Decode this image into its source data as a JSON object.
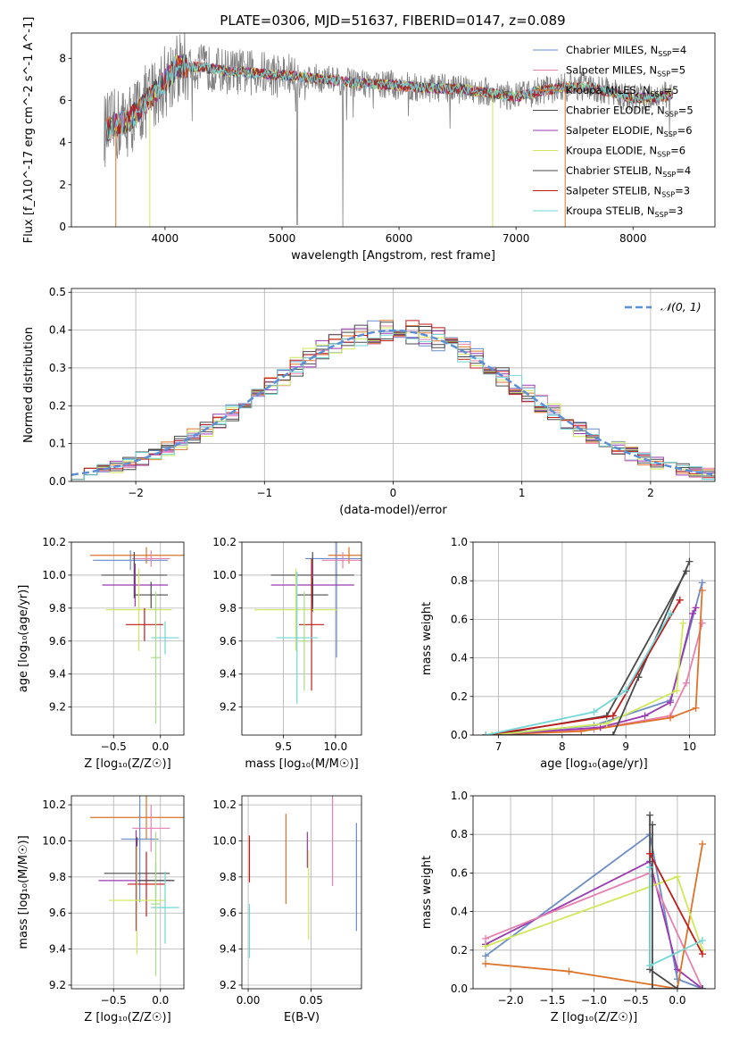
{
  "chart_data": [
    {
      "type": "line",
      "title": "PLATE=0306, MJD=51637, FIBERID=0147, z=0.089",
      "xlabel": "wavelength [Angstrom, rest frame]",
      "ylabel": "Flux [f_λ10^-17 erg cm^-2 s^-1 A^-1]",
      "xlim": [
        3200,
        8700
      ],
      "ylim": [
        0,
        9.2
      ],
      "xticks": [
        "4000",
        "5000",
        "6000",
        "7000",
        "8000"
      ],
      "yticks": [
        "0",
        "2",
        "4",
        "6",
        "8"
      ],
      "legend_position": "upper right",
      "legend": [
        {
          "label": "Chabrier MILES",
          "n": "4",
          "color": "#6a8cc7"
        },
        {
          "label": "Salpeter MILES",
          "n": "5",
          "color": "#e77fb0"
        },
        {
          "label": "Kroupa MILES",
          "n": "5",
          "color": "#dd7228"
        },
        {
          "label": "Chabrier ELODIE",
          "n": "5",
          "color": "#4a4a4a"
        },
        {
          "label": "Salpeter ELODIE",
          "n": "6",
          "color": "#9a39b0"
        },
        {
          "label": "Kroupa ELODIE",
          "n": "6",
          "color": "#cfe85a"
        },
        {
          "label": "Chabrier STELIB",
          "n": "4",
          "color": "#4a4a4a"
        },
        {
          "label": "Salpeter STELIB",
          "n": "3",
          "color": "#c11a1a"
        },
        {
          "label": "Kroupa STELIB",
          "n": "3",
          "color": "#72d6d6"
        }
      ],
      "continuum": {
        "wavelength": [
          3500,
          3700,
          3900,
          4100,
          4300,
          4500,
          4800,
          5000,
          5300,
          5600,
          5900,
          6200,
          6500,
          6800,
          7000,
          7200,
          7400,
          7600,
          7800,
          8000,
          8200,
          8350
        ],
        "flux": [
          4.6,
          5.1,
          6.3,
          7.6,
          7.6,
          7.4,
          7.3,
          7.2,
          7.05,
          6.85,
          6.75,
          6.6,
          6.55,
          6.35,
          6.15,
          6.45,
          6.6,
          6.65,
          6.4,
          6.1,
          6.15,
          6.3
        ]
      }
    },
    {
      "type": "histogram",
      "xlabel": "(data-model)/error",
      "ylabel": "Normed distribution",
      "xlim": [
        -2.5,
        2.5
      ],
      "ylim": [
        0,
        0.51
      ],
      "xticks": [
        "−2",
        "−1",
        "0",
        "1",
        "2"
      ],
      "yticks": [
        "0.0",
        "0.1",
        "0.2",
        "0.3",
        "0.4",
        "0.5"
      ],
      "legend_label": "𝒩(0, 1)",
      "reference": {
        "name": "𝒩(0, 1)",
        "mean": 0,
        "sigma": 1,
        "color": "#5b8fd6"
      },
      "bin_width": 0.1
    },
    {
      "type": "scatter",
      "xlabel": "Z [log₁₀(Z/Z☉)]",
      "ylabel": "age  [log₁₀(age/yr)]",
      "xlim": [
        -0.95,
        0.25
      ],
      "ylim": [
        9.03,
        10.2
      ],
      "xticks": [
        "−0.5",
        "0.0"
      ],
      "yticks": [
        "9.2",
        "9.4",
        "9.6",
        "9.8",
        "10.0",
        "10.2"
      ],
      "points": [
        {
          "x": -0.32,
          "y": 10.09,
          "xerr": 0.4,
          "yerr": 0.06,
          "color": "#6a8cc7"
        },
        {
          "x": -0.15,
          "y": 10.12,
          "xerr": 0.6,
          "yerr": 0.05,
          "color": "#dd7228"
        },
        {
          "x": -0.1,
          "y": 10.1,
          "xerr": 0.2,
          "yerr": 0.05,
          "color": "#e77fb0"
        },
        {
          "x": -0.28,
          "y": 10.0,
          "xerr": 0.35,
          "yerr": 0.14,
          "color": "#4a4a4a"
        },
        {
          "x": -0.27,
          "y": 9.94,
          "xerr": 0.35,
          "yerr": 0.13,
          "color": "#9a39b0"
        },
        {
          "x": -0.1,
          "y": 9.88,
          "xerr": 0.18,
          "yerr": 0.08,
          "color": "#4a4a4a"
        },
        {
          "x": -0.23,
          "y": 9.79,
          "xerr": 0.35,
          "yerr": 0.25,
          "color": "#cfe85a"
        },
        {
          "x": -0.17,
          "y": 9.7,
          "xerr": 0.2,
          "yerr": 0.1,
          "color": "#c11a1a"
        },
        {
          "x": 0.05,
          "y": 9.62,
          "xerr": 0.15,
          "yerr": 0.1,
          "color": "#72d6d6"
        },
        {
          "x": -0.05,
          "y": 9.5,
          "xerr": 0.05,
          "yerr": 0.4,
          "color": "#a8de86"
        }
      ]
    },
    {
      "type": "scatter",
      "xlabel": "mass [log₁₀(M/M☉)]",
      "xlim": [
        9.1,
        10.25
      ],
      "ylim": [
        9.03,
        10.2
      ],
      "xticks": [
        "9.5",
        "10.0"
      ],
      "yticks": [
        "9.2",
        "9.4",
        "9.6",
        "9.8",
        "10.0",
        "10.2"
      ],
      "points": [
        {
          "x": 10.01,
          "y": 10.1,
          "xerr": 0.3,
          "yerr": 0.6,
          "color": "#6a8cc7"
        },
        {
          "x": 10.13,
          "y": 10.12,
          "xerr": 0.2,
          "yerr": 0.05,
          "color": "#dd7228"
        },
        {
          "x": 10.07,
          "y": 10.09,
          "xerr": 0.2,
          "yerr": 0.05,
          "color": "#e77fb0"
        },
        {
          "x": 9.78,
          "y": 10.0,
          "xerr": 0.4,
          "yerr": 0.14,
          "color": "#4a4a4a"
        },
        {
          "x": 9.78,
          "y": 9.94,
          "xerr": 0.4,
          "yerr": 0.13,
          "color": "#9a39b0"
        },
        {
          "x": 9.78,
          "y": 9.88,
          "xerr": 0.15,
          "yerr": 0.1,
          "color": "#4a4a4a"
        },
        {
          "x": 9.62,
          "y": 9.79,
          "xerr": 0.4,
          "yerr": 0.25,
          "color": "#cfe85a"
        },
        {
          "x": 9.77,
          "y": 9.7,
          "xerr": 0.12,
          "yerr": 0.4,
          "color": "#c11a1a"
        },
        {
          "x": 9.63,
          "y": 9.62,
          "xerr": 0.2,
          "yerr": 0.4,
          "color": "#72d6d6"
        },
        {
          "x": 9.7,
          "y": 9.6,
          "xerr": 0.05,
          "yerr": 0.3,
          "color": "#a8de86"
        }
      ]
    },
    {
      "type": "line",
      "xlabel": "age  [log₁₀(age/yr)]",
      "ylabel": "mass weight",
      "xlim": [
        6.6,
        10.4
      ],
      "ylim": [
        0,
        1.0
      ],
      "xticks": [
        "7",
        "8",
        "9",
        "10"
      ],
      "yticks": [
        "0.0",
        "0.2",
        "0.4",
        "0.6",
        "0.8",
        "1.0"
      ],
      "series": [
        {
          "color": "#6a8cc7",
          "x": [
            6.8,
            8.5,
            9.7,
            10.2
          ],
          "y": [
            0.0,
            0.05,
            0.18,
            0.79
          ]
        },
        {
          "color": "#e77fb0",
          "x": [
            6.8,
            8.5,
            9.7,
            9.95,
            10.2
          ],
          "y": [
            0.0,
            0.03,
            0.1,
            0.27,
            0.58
          ]
        },
        {
          "color": "#dd7228",
          "x": [
            6.8,
            8.3,
            9.7,
            10.1,
            10.2
          ],
          "y": [
            0.0,
            0.02,
            0.09,
            0.14,
            0.75
          ]
        },
        {
          "color": "#4a4a4a",
          "x": [
            6.9,
            8.7,
            9.95
          ],
          "y": [
            0.0,
            0.1,
            0.85
          ]
        },
        {
          "color": "#9a39b0",
          "x": [
            6.8,
            8.6,
            9.3,
            9.7,
            10.05,
            10.1
          ],
          "y": [
            0.0,
            0.04,
            0.1,
            0.17,
            0.63,
            0.66
          ]
        },
        {
          "color": "#cfe85a",
          "x": [
            6.9,
            8.7,
            9.8,
            9.9
          ],
          "y": [
            0.0,
            0.06,
            0.23,
            0.58
          ]
        },
        {
          "color": "#4a4a4a",
          "x": [
            6.8,
            8.8,
            9.2,
            10.0
          ],
          "y": [
            0.0,
            0.0,
            0.3,
            0.9
          ]
        },
        {
          "color": "#c11a1a",
          "x": [
            6.8,
            8.8,
            9.85
          ],
          "y": [
            0.0,
            0.1,
            0.7
          ]
        },
        {
          "color": "#72d6d6",
          "x": [
            6.8,
            8.5,
            9.0,
            9.7
          ],
          "y": [
            0.0,
            0.12,
            0.23,
            0.63
          ]
        }
      ]
    },
    {
      "type": "scatter",
      "xlabel": "Z [log₁₀(Z/Z☉)]",
      "ylabel": "mass [log₁₀(M/M☉)]",
      "xlim": [
        -0.95,
        0.25
      ],
      "ylim": [
        9.18,
        10.25
      ],
      "xticks": [
        "−0.5",
        "0.0"
      ],
      "yticks": [
        "9.2",
        "9.4",
        "9.6",
        "9.8",
        "10.0",
        "10.2"
      ],
      "points": [
        {
          "x": -0.15,
          "y": 10.13,
          "xerr": 0.6,
          "yerr": 0.12,
          "color": "#dd7228"
        },
        {
          "x": -0.1,
          "y": 10.07,
          "xerr": 0.2,
          "yerr": 0.13,
          "color": "#e77fb0"
        },
        {
          "x": -0.22,
          "y": 10.01,
          "xerr": 0.2,
          "yerr": 0.35,
          "color": "#6a8cc7"
        },
        {
          "x": -0.25,
          "y": 9.82,
          "xerr": 0.35,
          "yerr": 0.2,
          "color": "#4a4a4a"
        },
        {
          "x": -0.26,
          "y": 9.78,
          "xerr": 0.4,
          "yerr": 0.28,
          "color": "#9a39b0"
        },
        {
          "x": -0.05,
          "y": 9.78,
          "xerr": 0.2,
          "yerr": 0.1,
          "color": "#4a4a4a"
        },
        {
          "x": -0.15,
          "y": 9.76,
          "xerr": 0.2,
          "yerr": 0.18,
          "color": "#c11a1a"
        },
        {
          "x": -0.25,
          "y": 9.67,
          "xerr": 0.3,
          "yerr": 0.3,
          "color": "#cfe85a"
        },
        {
          "x": 0.05,
          "y": 9.63,
          "xerr": 0.15,
          "yerr": 0.2,
          "color": "#72d6d6"
        },
        {
          "x": -0.05,
          "y": 9.65,
          "xerr": 0.05,
          "yerr": 0.4,
          "color": "#a8de86"
        }
      ]
    },
    {
      "type": "scatter",
      "xlabel": "E(B-V)",
      "xlim": [
        -0.005,
        0.09
      ],
      "ylim": [
        9.18,
        10.25
      ],
      "xticks": [
        "0.00",
        "0.05"
      ],
      "yticks": [
        "9.2",
        "9.4",
        "9.6",
        "9.8",
        "10.0",
        "10.2"
      ],
      "points": [
        {
          "x": 0.001,
          "y": 9.9,
          "yerr": 0.13,
          "color": "#c11a1a"
        },
        {
          "x": 0.001,
          "y": 9.5,
          "yerr": 0.15,
          "color": "#72d6d6"
        },
        {
          "x": 0.03,
          "y": 9.9,
          "yerr": 0.25,
          "color": "#dd7228"
        },
        {
          "x": 0.047,
          "y": 9.95,
          "yerr": 0.1,
          "color": "#9a39b0"
        },
        {
          "x": 0.048,
          "y": 9.7,
          "yerr": 0.25,
          "color": "#cfe85a"
        },
        {
          "x": 0.067,
          "y": 10.0,
          "yerr": 0.25,
          "color": "#e77fb0"
        },
        {
          "x": 0.086,
          "y": 9.8,
          "yerr": 0.3,
          "color": "#6a8cc7"
        }
      ]
    },
    {
      "type": "line",
      "xlabel": "Z [log₁₀(Z/Z☉)]",
      "ylabel": "mass weight",
      "xlim": [
        -2.45,
        0.45
      ],
      "ylim": [
        0,
        1.0
      ],
      "xticks": [
        "−2.0",
        "−1.5",
        "−1.0",
        "−0.5",
        "0.0"
      ],
      "yticks": [
        "0.0",
        "0.2",
        "0.4",
        "0.6",
        "0.8",
        "1.0"
      ],
      "series": [
        {
          "color": "#6a8cc7",
          "x": [
            -2.3,
            -0.33,
            0.0,
            0.3
          ],
          "y": [
            0.17,
            0.8,
            0.05,
            0.0
          ]
        },
        {
          "color": "#9a39b0",
          "x": [
            -2.3,
            -0.33,
            0.0,
            0.3
          ],
          "y": [
            0.23,
            0.66,
            0.1,
            0.0
          ]
        },
        {
          "color": "#e77fb0",
          "x": [
            -2.3,
            -0.33,
            0.3
          ],
          "y": [
            0.26,
            0.6,
            0.0
          ]
        },
        {
          "color": "#dd7228",
          "x": [
            -2.3,
            -1.3,
            0.0,
            0.3
          ],
          "y": [
            0.13,
            0.09,
            0.0,
            0.75
          ]
        },
        {
          "color": "#cfe85a",
          "x": [
            -2.3,
            0.0,
            0.3
          ],
          "y": [
            0.22,
            0.58,
            0.2
          ]
        },
        {
          "color": "#4a4a4a",
          "x": [
            -0.3,
            -0.3,
            0.3
          ],
          "y": [
            0.85,
            0.0,
            0.0
          ]
        },
        {
          "color": "#4a4a4a",
          "x": [
            -0.33,
            -0.33,
            0.0,
            0.3
          ],
          "y": [
            0.9,
            0.1,
            0.0,
            0.0
          ]
        },
        {
          "color": "#c11a1a",
          "x": [
            -0.33,
            0.3
          ],
          "y": [
            0.7,
            0.18
          ]
        },
        {
          "color": "#72d6d6",
          "x": [
            -0.33,
            -0.33,
            0.3
          ],
          "y": [
            0.63,
            0.12,
            0.25
          ]
        }
      ]
    }
  ]
}
